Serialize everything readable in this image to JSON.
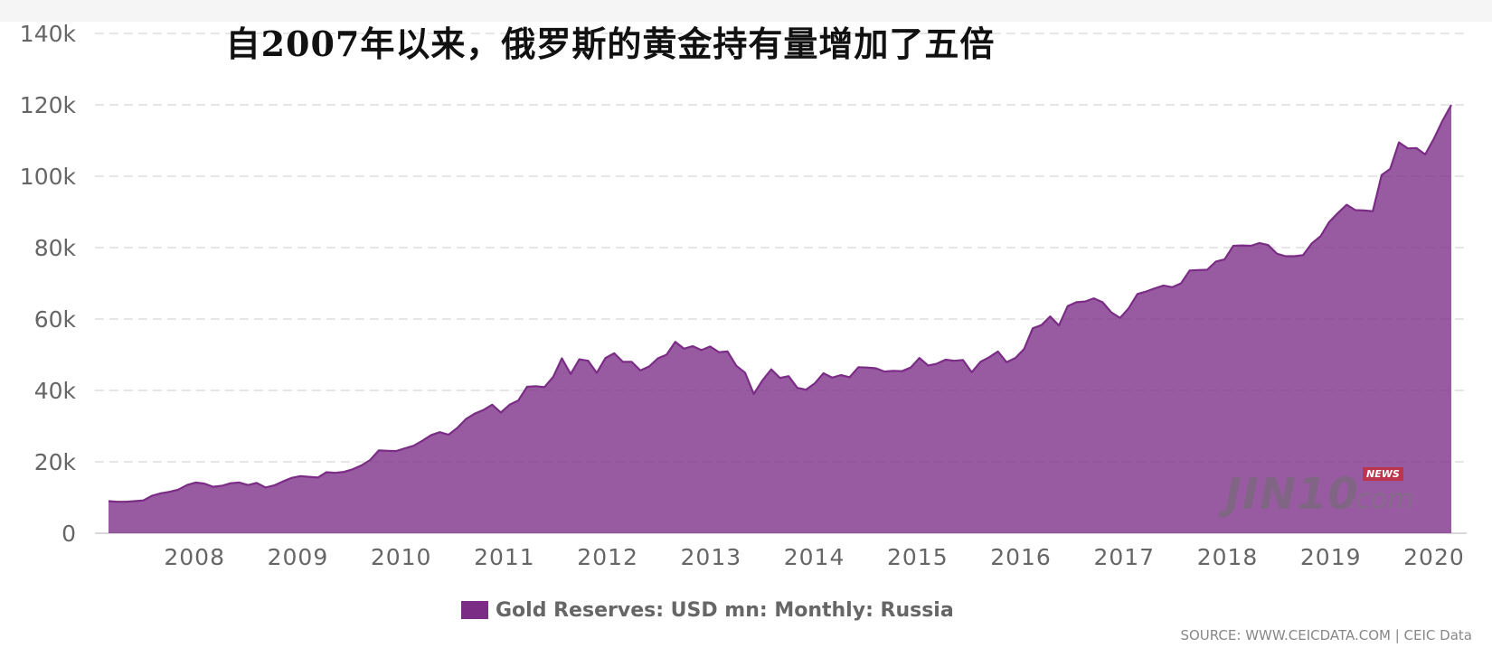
{
  "chart_data": {
    "type": "area",
    "title": "自2007年以来，俄罗斯的黄金持有量增加了五倍",
    "xlabel": "",
    "ylabel": "",
    "x_start": "2007-03",
    "x_end": "2020-03",
    "x_ticks": [
      "2008",
      "2009",
      "2010",
      "2011",
      "2012",
      "2013",
      "2014",
      "2015",
      "2016",
      "2017",
      "2018",
      "2019",
      "2020"
    ],
    "ylim": [
      0,
      140000
    ],
    "y_ticks": [
      0,
      20000,
      40000,
      60000,
      80000,
      100000,
      120000,
      140000
    ],
    "y_tick_labels": [
      "0",
      "20k",
      "40k",
      "60k",
      "80k",
      "100k",
      "120k",
      "140k"
    ],
    "grid": "horizontal dashed",
    "legend_position": "bottom-center",
    "series": [
      {
        "name": "Gold Reserves: USD mn: Monthly: Russia",
        "color": "#7b2d86",
        "values": [
          9000,
          8800,
          8800,
          9000,
          9200,
          10500,
          11200,
          11600,
          12200,
          13500,
          14200,
          13900,
          13000,
          13300,
          14000,
          14200,
          13500,
          14100,
          12800,
          13400,
          14500,
          15500,
          16000,
          15800,
          15600,
          17100,
          16900,
          17200,
          17900,
          19000,
          20500,
          23200,
          23100,
          23000,
          23800,
          24500,
          25900,
          27500,
          28300,
          27600,
          29500,
          32000,
          33500,
          34500,
          36000,
          33800,
          36000,
          37200,
          41000,
          41200,
          40900,
          43800,
          49000,
          44600,
          48700,
          48300,
          44900,
          49100,
          50400,
          48000,
          48000,
          45600,
          46700,
          49000,
          50000,
          53600,
          51700,
          52400,
          51300,
          52300,
          50700,
          50900,
          46900,
          45000,
          39000,
          42800,
          45900,
          43500,
          44000,
          40700,
          40200,
          42000,
          44800,
          43600,
          44300,
          43700,
          46500,
          46400,
          46200,
          45300,
          45500,
          45400,
          46400,
          49100,
          47000,
          47500,
          48600,
          48300,
          48500,
          45100,
          48000,
          49300,
          50900,
          47900,
          49100,
          51600,
          57400,
          58300,
          60700,
          58200,
          63600,
          64700,
          64900,
          65800,
          64700,
          61900,
          60300,
          63000,
          67000,
          67700,
          68600,
          69400,
          68900,
          70000,
          73600,
          73700,
          73800,
          76100,
          76700,
          80500,
          80600,
          80500,
          81300,
          80700,
          78300,
          77600,
          77600,
          77900,
          81200,
          83200,
          87200,
          89700,
          92000,
          90500,
          90400,
          90200,
          100300,
          102100,
          109500,
          107800,
          107900,
          106100,
          110500,
          115600,
          120000
        ]
      }
    ]
  },
  "legend": {
    "label": "Gold Reserves: USD mn: Monthly: Russia",
    "color": "#7b2d86"
  },
  "source": "SOURCE: WWW.CEICDATA.COM | CEIC Data",
  "watermark": {
    "logo": "JIN10",
    "suffix": ".com",
    "badge": "NEWS"
  }
}
